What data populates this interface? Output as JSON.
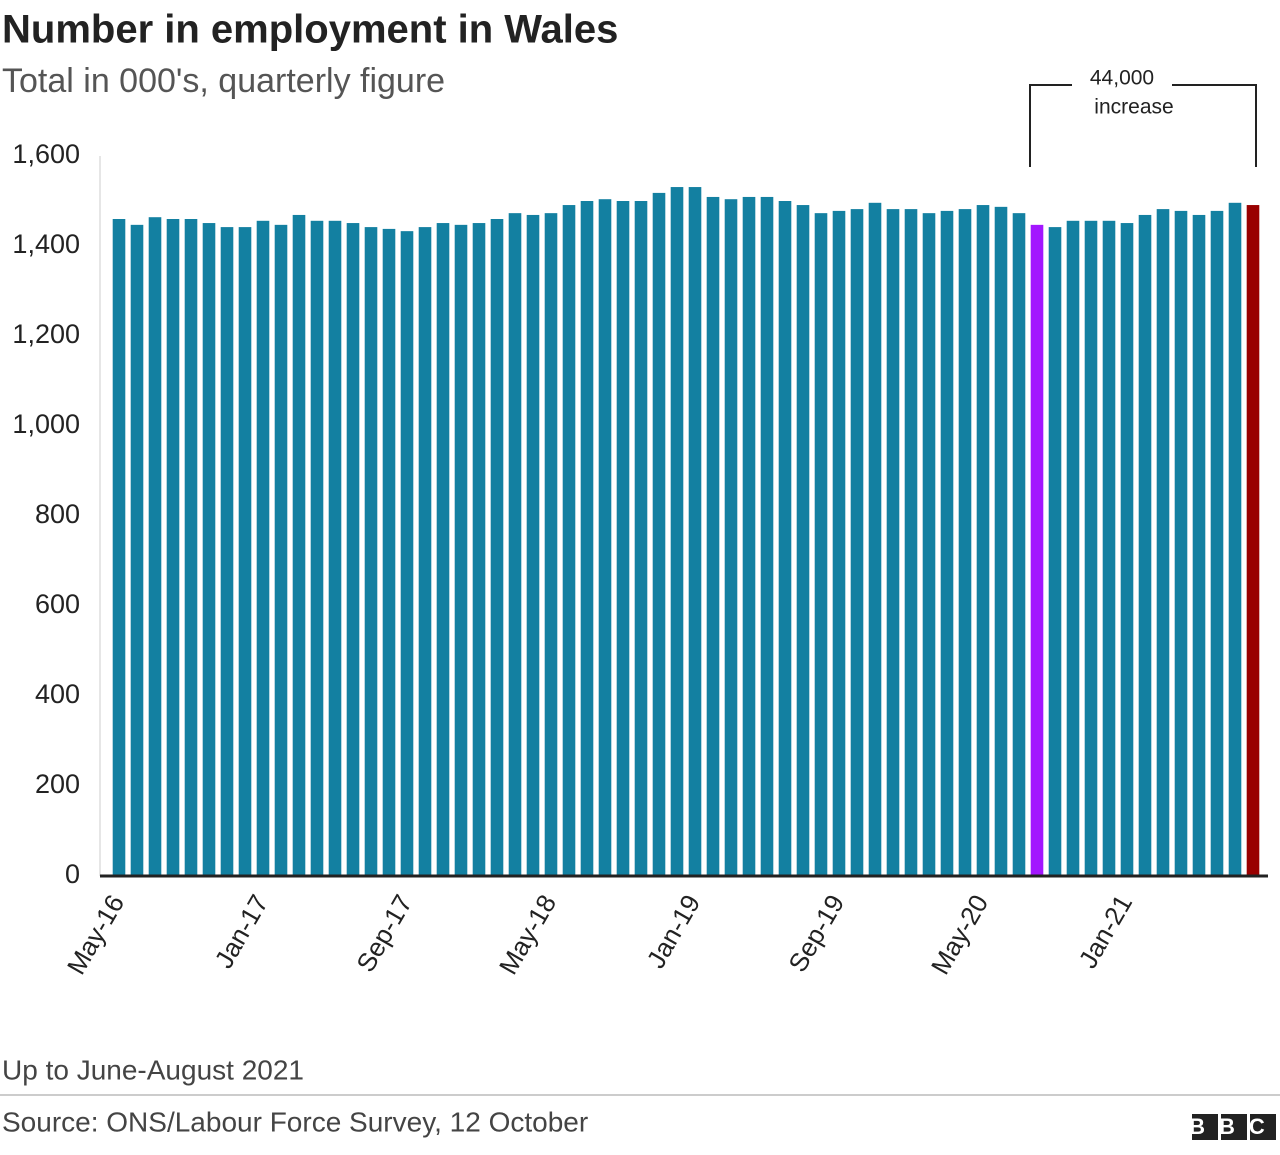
{
  "chart_data": {
    "type": "bar",
    "title": "Number in employment in Wales",
    "subtitle": "Total in 000's, quarterly figure",
    "categories": [
      "May-16",
      null,
      null,
      null,
      null,
      null,
      null,
      null,
      "Jan-17",
      null,
      null,
      null,
      null,
      null,
      null,
      null,
      "Sep-17",
      null,
      null,
      null,
      null,
      null,
      null,
      null,
      "May-18",
      null,
      null,
      null,
      null,
      null,
      null,
      null,
      "Jan-19",
      null,
      null,
      null,
      null,
      null,
      null,
      null,
      "Sep-19",
      null,
      null,
      null,
      null,
      null,
      null,
      null,
      "May-20",
      null,
      null,
      null,
      null,
      null,
      null,
      null,
      "Jan-21",
      null,
      null,
      null,
      null,
      null,
      null,
      null
    ],
    "values": [
      1460,
      1447,
      1464,
      1460,
      1460,
      1451,
      1442,
      1442,
      1456,
      1447,
      1469,
      1456,
      1456,
      1451,
      1442,
      1438,
      1433,
      1442,
      1451,
      1447,
      1451,
      1460,
      1473,
      1469,
      1473,
      1491,
      1500,
      1504,
      1500,
      1500,
      1518,
      1531,
      1531,
      1509,
      1504,
      1509,
      1509,
      1500,
      1491,
      1473,
      1478,
      1482,
      1496,
      1482,
      1482,
      1473,
      1478,
      1482,
      1491,
      1487,
      1473,
      1447,
      1442,
      1456,
      1456,
      1456,
      1451,
      1469,
      1482,
      1478,
      1469,
      1478,
      1496,
      1491
    ],
    "color": "#1380a1",
    "highlight_colors": {
      "51": "#a316ff",
      "63": "#990000"
    },
    "ylim": [
      0,
      1600
    ],
    "yticks": [
      0,
      200,
      400,
      600,
      800,
      {
        "value": 1000,
        "label": "1,000"
      },
      {
        "value": 1200,
        "label": "1,200"
      },
      {
        "value": 1400,
        "label": "1,400"
      },
      {
        "value": 1600,
        "label": "1,600"
      }
    ],
    "grid": false,
    "annotation": [
      "44,000",
      "increase"
    ],
    "note": "Up to June-August 2021",
    "source": "Source: ONS/Labour Force Survey, 12 October",
    "logo": "BBC"
  }
}
